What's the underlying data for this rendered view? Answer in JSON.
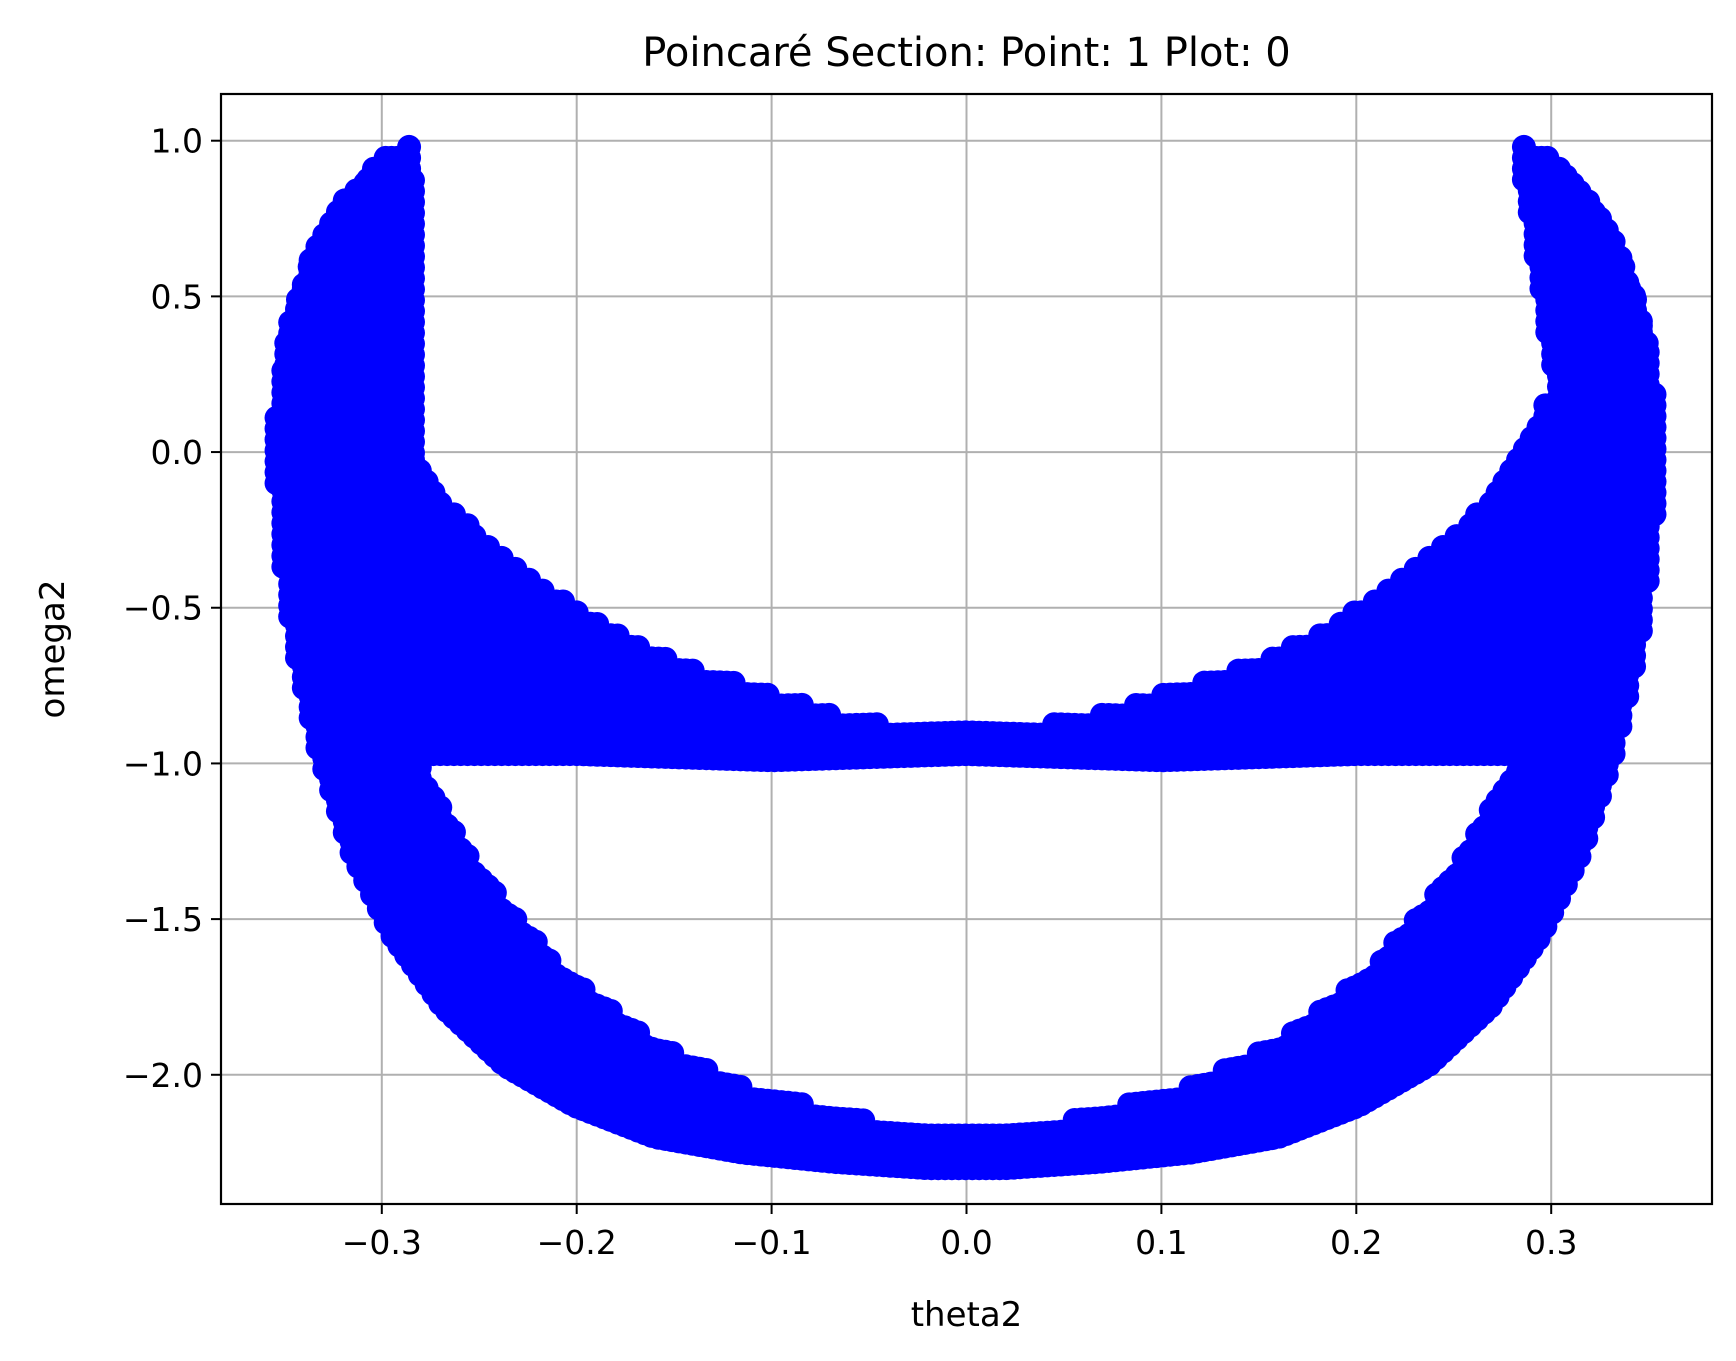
{
  "chart_data": {
    "type": "scatter",
    "title": "Poincaré Section: Point: 1 Plot: 0",
    "xlabel": "theta2",
    "ylabel": "omega2",
    "xlim": [
      -0.3825,
      0.3825
    ],
    "ylim": [
      -2.415,
      1.15
    ],
    "grid": true,
    "legend": "none",
    "marker_color": "#0000ff",
    "x_ticks": [
      -0.3,
      -0.2,
      -0.1,
      0.0,
      0.1,
      0.2,
      0.3
    ],
    "x_tick_labels": [
      "−0.3",
      "−0.2",
      "−0.1",
      "0.0",
      "0.1",
      "0.2",
      "0.3"
    ],
    "y_ticks": [
      1.0,
      0.5,
      0.0,
      -0.5,
      -1.0,
      -1.5,
      -2.0
    ],
    "y_tick_labels": [
      "1.0",
      "0.5",
      "0.0",
      "−0.5",
      "−1.0",
      "−1.5",
      "−2.0"
    ],
    "series": [
      {
        "band": "outer-crescent",
        "x": [
          -0.355,
          -0.352,
          -0.345,
          -0.333,
          -0.316,
          -0.295,
          -0.269,
          -0.237,
          -0.201,
          -0.16,
          -0.115,
          -0.068,
          -0.02,
          0.0,
          0.02,
          0.068,
          0.115,
          0.16,
          0.201,
          0.237,
          0.269,
          0.295,
          0.316,
          0.333,
          0.345,
          0.352,
          0.355
        ],
        "y_outer": [
          0.0,
          -0.3,
          -0.62,
          -0.95,
          -1.28,
          -1.55,
          -1.78,
          -1.97,
          -2.1,
          -2.2,
          -2.25,
          -2.28,
          -2.3,
          -2.3,
          -2.3,
          -2.28,
          -2.25,
          -2.2,
          -2.1,
          -1.97,
          -1.78,
          -1.55,
          -1.28,
          -0.95,
          -0.62,
          -0.3,
          0.0
        ],
        "upper_edge_x": [
          -0.355,
          -0.348,
          -0.335,
          -0.318,
          -0.298,
          -0.283
        ],
        "upper_edge_y": [
          0.1,
          0.4,
          0.65,
          0.82,
          0.95,
          1.0
        ],
        "inner_edge_x": [
          -0.282,
          -0.292,
          -0.3,
          -0.305,
          -0.298,
          -0.278,
          -0.25,
          -0.21,
          -0.16,
          -0.11,
          -0.05,
          0.0,
          0.05,
          0.11,
          0.16,
          0.21,
          0.25,
          0.278,
          0.298,
          0.305,
          0.3,
          0.292,
          0.282
        ],
        "inner_edge_y": [
          0.95,
          0.6,
          0.25,
          -0.2,
          -0.7,
          -1.05,
          -1.35,
          -1.65,
          -1.9,
          -2.05,
          -2.15,
          -2.18,
          -2.15,
          -2.05,
          -1.9,
          -1.65,
          -1.35,
          -1.05,
          -0.7,
          -0.2,
          0.25,
          0.6,
          0.95
        ]
      },
      {
        "band": "inner-arc",
        "top_x": [
          -0.305,
          -0.29,
          -0.27,
          -0.245,
          -0.22,
          -0.19,
          -0.16,
          -0.13,
          -0.1,
          -0.07,
          -0.04,
          -0.01,
          0.0,
          0.01,
          0.04,
          0.07,
          0.1,
          0.13,
          0.16,
          0.19,
          0.22,
          0.245,
          0.27,
          0.29,
          0.305
        ],
        "top_y": [
          0.3,
          0.05,
          -0.15,
          -0.3,
          -0.42,
          -0.55,
          -0.65,
          -0.72,
          -0.78,
          -0.84,
          -0.88,
          -0.9,
          -0.9,
          -0.9,
          -0.88,
          -0.84,
          -0.78,
          -0.72,
          -0.65,
          -0.55,
          -0.42,
          -0.3,
          -0.15,
          0.05,
          0.3
        ],
        "bottom_x": [
          -0.3,
          -0.2,
          -0.1,
          0.0,
          0.1,
          0.2,
          0.3
        ],
        "bottom_y": [
          -0.97,
          -0.97,
          -0.99,
          -0.97,
          -0.99,
          -0.97,
          -0.97
        ]
      }
    ]
  }
}
